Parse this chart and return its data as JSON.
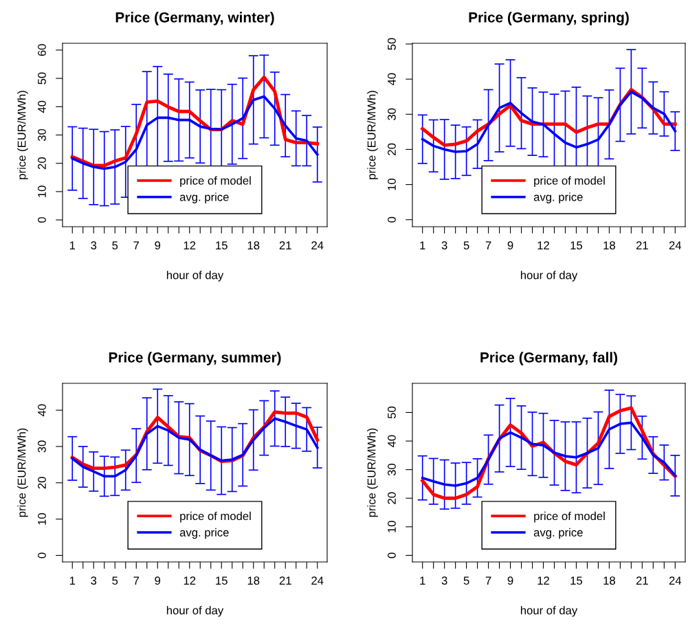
{
  "chart_data": [
    {
      "type": "line",
      "title": "Price (Germany, winter)",
      "xlabel": "hour of day",
      "ylabel": "price (EUR/MWh)",
      "x": [
        1,
        2,
        3,
        4,
        5,
        6,
        7,
        8,
        9,
        10,
        11,
        12,
        13,
        14,
        15,
        16,
        17,
        18,
        19,
        20,
        21,
        22,
        23,
        24
      ],
      "series": [
        {
          "name": "price of model",
          "color": "#ff0000",
          "values": [
            22.3,
            20.7,
            19.2,
            19.2,
            20.8,
            21.9,
            30.4,
            41.6,
            42.0,
            39.9,
            38.3,
            38.3,
            35.0,
            31.9,
            31.9,
            35.1,
            33.8,
            46.0,
            50.4,
            45.4,
            28.4,
            27.3,
            27.3,
            26.9
          ]
        },
        {
          "name": "avg. price",
          "color": "#0000ff",
          "values": [
            21.7,
            20.0,
            18.7,
            18.1,
            18.7,
            20.5,
            24.9,
            33.5,
            36.1,
            36.1,
            35.3,
            35.3,
            33.0,
            32.2,
            32.0,
            33.8,
            35.9,
            42.4,
            43.6,
            39.3,
            33.3,
            28.8,
            28.0,
            23.1
          ],
          "errors": [
            11.2,
            12.4,
            13.3,
            13.1,
            13.1,
            12.5,
            15.9,
            18.9,
            18.1,
            15.4,
            14.5,
            13.4,
            12.9,
            13.9,
            14.0,
            14.1,
            14.2,
            15.6,
            14.6,
            12.9,
            11.0,
            9.7,
            8.9,
            9.7
          ]
        }
      ],
      "xlim": [
        0.08,
        24.92
      ],
      "xticks": [
        1,
        {
          "value": 2,
          "label": null
        },
        3,
        {
          "value": 4,
          "label": null
        },
        5,
        {
          "value": 6,
          "label": null
        },
        7,
        {
          "value": 8,
          "label": null
        },
        9,
        {
          "value": 10,
          "label": null
        },
        {
          "value": 11,
          "label": null
        },
        12,
        {
          "value": 13,
          "label": null
        },
        {
          "value": 14,
          "label": null
        },
        15,
        {
          "value": 16,
          "label": null
        },
        {
          "value": 17,
          "label": null
        },
        18,
        {
          "value": 19,
          "label": null
        },
        {
          "value": 20,
          "label": null
        },
        21,
        {
          "value": 22,
          "label": null
        },
        {
          "value": 23,
          "label": null
        },
        24
      ],
      "ylim": [
        -2.4,
        62.4
      ],
      "yticks": [
        0,
        10,
        20,
        30,
        40,
        50,
        60
      ],
      "legend": "bottom",
      "grid": false,
      "line_style": "solid",
      "marker": "none"
    },
    {
      "type": "line",
      "title": "Price (Germany, spring)",
      "xlabel": "hour of day",
      "ylabel": "price (EUR/MWh)",
      "x": [
        1,
        2,
        3,
        4,
        5,
        6,
        7,
        8,
        9,
        10,
        11,
        12,
        13,
        14,
        15,
        16,
        17,
        18,
        19,
        20,
        21,
        22,
        23,
        24
      ],
      "series": [
        {
          "name": "price of model",
          "color": "#ff0000",
          "values": [
            25.9,
            23.4,
            21.2,
            21.5,
            22.4,
            25.2,
            27.2,
            30.1,
            32.5,
            28.2,
            27.2,
            27.2,
            27.2,
            27.2,
            24.9,
            26.2,
            27.2,
            27.2,
            32.8,
            37.0,
            34.8,
            31.5,
            27.2,
            27.2
          ]
        },
        {
          "name": "avg. price",
          "color": "#0000ff",
          "values": [
            22.9,
            21.0,
            20.0,
            19.3,
            19.5,
            21.5,
            26.9,
            31.8,
            33.2,
            30.3,
            27.9,
            27.1,
            24.4,
            21.9,
            20.6,
            21.5,
            22.8,
            27.1,
            32.7,
            36.4,
            34.6,
            31.8,
            30.1,
            25.2
          ],
          "errors": [
            6.9,
            7.4,
            8.5,
            7.6,
            6.9,
            6.9,
            10.1,
            12.5,
            12.3,
            10.1,
            9.6,
            9.2,
            11.3,
            14.7,
            17.1,
            13.7,
            11.9,
            9.8,
            10.4,
            12.0,
            8.5,
            7.4,
            6.3,
            5.5
          ]
        }
      ],
      "xlim": [
        0.08,
        24.92
      ],
      "xticks": [
        1,
        {
          "value": 2,
          "label": null
        },
        3,
        {
          "value": 4,
          "label": null
        },
        5,
        {
          "value": 6,
          "label": null
        },
        7,
        {
          "value": 8,
          "label": null
        },
        9,
        {
          "value": 10,
          "label": null
        },
        {
          "value": 11,
          "label": null
        },
        12,
        {
          "value": 13,
          "label": null
        },
        {
          "value": 14,
          "label": null
        },
        15,
        {
          "value": 16,
          "label": null
        },
        {
          "value": 17,
          "label": null
        },
        18,
        {
          "value": 19,
          "label": null
        },
        {
          "value": 20,
          "label": null
        },
        21,
        {
          "value": 22,
          "label": null
        },
        {
          "value": 23,
          "label": null
        },
        24
      ],
      "ylim": [
        -2.0,
        50.2
      ],
      "yticks": [
        0,
        10,
        20,
        30,
        40,
        50
      ],
      "legend": "bottom",
      "grid": false,
      "line_style": "solid",
      "marker": "none"
    },
    {
      "type": "line",
      "title": "Price (Germany, summer)",
      "xlabel": "hour of day",
      "ylabel": "price (EUR/MWh)",
      "x": [
        1,
        2,
        3,
        4,
        5,
        6,
        7,
        8,
        9,
        10,
        11,
        12,
        13,
        14,
        15,
        16,
        17,
        18,
        19,
        20,
        21,
        22,
        23,
        24
      ],
      "series": [
        {
          "name": "price of model",
          "color": "#ff0000",
          "values": [
            27.0,
            25.1,
            24.0,
            24.0,
            24.3,
            24.9,
            27.7,
            34.1,
            38.0,
            35.4,
            32.7,
            32.4,
            28.9,
            27.5,
            25.9,
            26.1,
            27.5,
            32.4,
            35.4,
            39.5,
            39.2,
            39.2,
            38.1,
            31.8
          ]
        },
        {
          "name": "avg. price",
          "color": "#0000ff",
          "values": [
            26.7,
            24.4,
            23.1,
            21.8,
            21.8,
            23.5,
            27.5,
            33.5,
            35.6,
            34.4,
            32.4,
            31.9,
            29.1,
            27.5,
            26.1,
            26.4,
            27.7,
            31.8,
            35.1,
            37.7,
            36.8,
            35.7,
            34.7,
            29.7
          ],
          "errors": [
            6.0,
            5.6,
            5.4,
            5.5,
            5.3,
            5.5,
            7.4,
            9.9,
            10.2,
            9.6,
            9.9,
            9.9,
            9.3,
            9.5,
            9.3,
            8.8,
            8.6,
            8.3,
            7.5,
            7.6,
            6.8,
            6.2,
            6.0,
            5.6
          ]
        }
      ],
      "xlim": [
        0.08,
        24.92
      ],
      "xticks": [
        1,
        {
          "value": 2,
          "label": null
        },
        3,
        {
          "value": 4,
          "label": null
        },
        5,
        {
          "value": 6,
          "label": null
        },
        7,
        {
          "value": 8,
          "label": null
        },
        9,
        {
          "value": 10,
          "label": null
        },
        {
          "value": 11,
          "label": null
        },
        12,
        {
          "value": 13,
          "label": null
        },
        {
          "value": 14,
          "label": null
        },
        15,
        {
          "value": 16,
          "label": null
        },
        {
          "value": 17,
          "label": null
        },
        18,
        {
          "value": 19,
          "label": null
        },
        {
          "value": 20,
          "label": null
        },
        21,
        {
          "value": 22,
          "label": null
        },
        {
          "value": 23,
          "label": null
        },
        24
      ],
      "ylim": [
        -1.8,
        47.4
      ],
      "yticks": [
        0,
        10,
        20,
        30,
        40
      ],
      "legend": "bottom",
      "grid": false,
      "line_style": "solid",
      "marker": "none"
    },
    {
      "type": "line",
      "title": "Price (Germany, fall)",
      "xlabel": "hour of day",
      "ylabel": "price (EUR/MWh)",
      "x": [
        1,
        2,
        3,
        4,
        5,
        6,
        7,
        8,
        9,
        10,
        11,
        12,
        13,
        14,
        15,
        16,
        17,
        18,
        19,
        20,
        21,
        22,
        23,
        24
      ],
      "series": [
        {
          "name": "price of model",
          "color": "#ff0000",
          "values": [
            26.1,
            21.3,
            20.0,
            20.0,
            21.3,
            24.0,
            33.9,
            40.6,
            45.6,
            42.8,
            38.2,
            39.5,
            35.8,
            32.9,
            31.7,
            35.7,
            39.3,
            48.6,
            50.6,
            51.6,
            43.6,
            35.5,
            31.5,
            27.7
          ]
        },
        {
          "name": "avg. price",
          "color": "#0000ff",
          "values": [
            27.1,
            25.9,
            24.8,
            24.4,
            25.2,
            27.1,
            33.5,
            40.9,
            43.0,
            41.2,
            39.0,
            38.5,
            35.9,
            34.7,
            34.3,
            35.8,
            37.5,
            44.1,
            46.0,
            46.4,
            41.2,
            35.1,
            32.5,
            27.9
          ],
          "errors": [
            7.7,
            8.0,
            8.6,
            7.9,
            7.3,
            6.7,
            8.6,
            11.7,
            11.9,
            11.1,
            11.1,
            11.2,
            11.3,
            12.0,
            12.4,
            12.2,
            12.7,
            13.7,
            10.3,
            9.4,
            7.5,
            6.4,
            6.1,
            7.1
          ]
        }
      ],
      "xlim": [
        0.08,
        24.92
      ],
      "xticks": [
        1,
        {
          "value": 2,
          "label": null
        },
        3,
        {
          "value": 4,
          "label": null
        },
        5,
        {
          "value": 6,
          "label": null
        },
        7,
        {
          "value": 8,
          "label": null
        },
        9,
        {
          "value": 10,
          "label": null
        },
        {
          "value": 11,
          "label": null
        },
        12,
        {
          "value": 13,
          "label": null
        },
        {
          "value": 14,
          "label": null
        },
        15,
        {
          "value": 16,
          "label": null
        },
        {
          "value": 17,
          "label": null
        },
        18,
        {
          "value": 19,
          "label": null
        },
        {
          "value": 20,
          "label": null
        },
        21,
        {
          "value": 22,
          "label": null
        },
        {
          "value": 23,
          "label": null
        },
        24
      ],
      "ylim": [
        -2.3,
        60.2
      ],
      "yticks": [
        0,
        10,
        20,
        30,
        40,
        50
      ],
      "legend": "bottom",
      "grid": false,
      "line_style": "solid",
      "marker": "none"
    }
  ]
}
